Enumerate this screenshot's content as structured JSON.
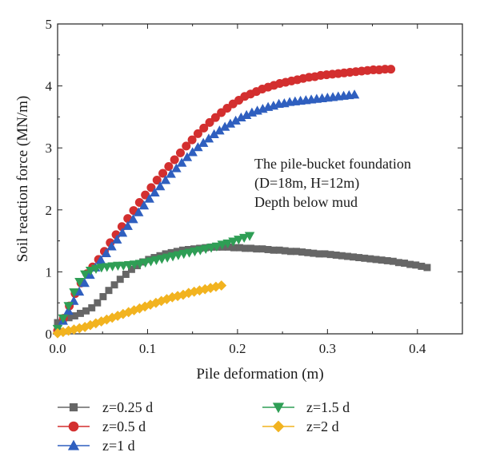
{
  "chart_data": {
    "type": "scatter",
    "title": "",
    "xlabel": "Pile deformation (m)",
    "ylabel": "Soil reaction force (MN/m)",
    "xlim": [
      0,
      0.45
    ],
    "ylim": [
      0,
      5
    ],
    "x_ticks": [
      "0.0",
      "0.1",
      "0.2",
      "0.3",
      "0.4"
    ],
    "y_ticks": [
      "0",
      "1",
      "2",
      "3",
      "4",
      "5"
    ],
    "grid": false,
    "legend_position": "bottom",
    "annotation": [
      "The pile-bucket foundation",
      "(D=18m, H=12m)",
      "Depth below mud"
    ],
    "series": [
      {
        "name": "z=0.25 d",
        "marker": "square",
        "color": "#666666",
        "x": [
          0.0,
          0.0063,
          0.0126,
          0.019,
          0.0253,
          0.0316,
          0.038,
          0.0443,
          0.0506,
          0.0569,
          0.0632,
          0.0696,
          0.0759,
          0.0822,
          0.0885,
          0.0948,
          0.1012,
          0.1075,
          0.1138,
          0.1201,
          0.1264,
          0.1328,
          0.1391,
          0.1454,
          0.1517,
          0.158,
          0.1644,
          0.1707,
          0.177,
          0.1833,
          0.1896,
          0.196,
          0.2023,
          0.2086,
          0.2149,
          0.2212,
          0.2276,
          0.2339,
          0.2402,
          0.2465,
          0.2528,
          0.2592,
          0.2655,
          0.2718,
          0.2781,
          0.2844,
          0.2908,
          0.2971,
          0.3034,
          0.3097,
          0.316,
          0.3224,
          0.3287,
          0.335,
          0.3413,
          0.3476,
          0.354,
          0.3603,
          0.3666,
          0.3729,
          0.3792,
          0.3856,
          0.3919,
          0.3982,
          0.4045,
          0.4108
        ],
        "y": [
          0.18,
          0.22,
          0.26,
          0.29,
          0.33,
          0.37,
          0.42,
          0.5,
          0.6,
          0.7,
          0.79,
          0.88,
          0.96,
          1.04,
          1.1,
          1.16,
          1.2,
          1.23,
          1.26,
          1.29,
          1.31,
          1.33,
          1.35,
          1.36,
          1.37,
          1.38,
          1.39,
          1.4,
          1.4,
          1.4,
          1.4,
          1.39,
          1.39,
          1.38,
          1.38,
          1.37,
          1.37,
          1.36,
          1.35,
          1.35,
          1.34,
          1.33,
          1.33,
          1.32,
          1.31,
          1.3,
          1.29,
          1.29,
          1.28,
          1.27,
          1.26,
          1.25,
          1.24,
          1.23,
          1.22,
          1.21,
          1.2,
          1.19,
          1.18,
          1.17,
          1.15,
          1.14,
          1.12,
          1.11,
          1.09,
          1.07
        ]
      },
      {
        "name": "z=0.5 d",
        "marker": "circle",
        "color": "#d32f2f",
        "x": [
          0.0,
          0.0065,
          0.013,
          0.0195,
          0.026,
          0.0325,
          0.039,
          0.0455,
          0.052,
          0.0585,
          0.065,
          0.0715,
          0.078,
          0.0845,
          0.091,
          0.0975,
          0.104,
          0.1105,
          0.117,
          0.1235,
          0.13,
          0.1365,
          0.143,
          0.1495,
          0.156,
          0.1625,
          0.169,
          0.1755,
          0.182,
          0.1885,
          0.195,
          0.2015,
          0.208,
          0.2145,
          0.221,
          0.2275,
          0.234,
          0.2405,
          0.247,
          0.2535,
          0.26,
          0.2665,
          0.273,
          0.2795,
          0.286,
          0.2925,
          0.299,
          0.3055,
          0.312,
          0.3185,
          0.325,
          0.3315,
          0.338,
          0.3445,
          0.351,
          0.3575,
          0.364,
          0.3705
        ],
        "y": [
          0.05,
          0.25,
          0.45,
          0.65,
          0.82,
          0.97,
          1.08,
          1.2,
          1.33,
          1.47,
          1.6,
          1.73,
          1.86,
          1.99,
          2.12,
          2.24,
          2.36,
          2.48,
          2.59,
          2.7,
          2.81,
          2.92,
          3.03,
          3.13,
          3.23,
          3.32,
          3.41,
          3.49,
          3.57,
          3.64,
          3.71,
          3.77,
          3.83,
          3.87,
          3.91,
          3.95,
          3.98,
          4.01,
          4.04,
          4.06,
          4.08,
          4.1,
          4.12,
          4.14,
          4.15,
          4.17,
          4.18,
          4.19,
          4.2,
          4.21,
          4.22,
          4.23,
          4.24,
          4.25,
          4.26,
          4.26,
          4.27,
          4.27
        ]
      },
      {
        "name": "z=1 d",
        "marker": "triangle-up",
        "color": "#2f5fbf",
        "x": [
          0.0,
          0.006,
          0.012,
          0.018,
          0.024,
          0.03,
          0.036,
          0.042,
          0.048,
          0.054,
          0.06,
          0.066,
          0.072,
          0.078,
          0.084,
          0.09,
          0.096,
          0.102,
          0.108,
          0.114,
          0.12,
          0.126,
          0.132,
          0.138,
          0.144,
          0.15,
          0.156,
          0.162,
          0.168,
          0.174,
          0.18,
          0.186,
          0.192,
          0.198,
          0.204,
          0.21,
          0.216,
          0.222,
          0.228,
          0.234,
          0.24,
          0.246,
          0.252,
          0.258,
          0.264,
          0.27,
          0.276,
          0.282,
          0.288,
          0.294,
          0.3,
          0.306,
          0.312,
          0.318,
          0.324,
          0.33
        ],
        "y": [
          0.05,
          0.21,
          0.37,
          0.53,
          0.68,
          0.82,
          0.95,
          1.07,
          1.19,
          1.3,
          1.41,
          1.52,
          1.63,
          1.74,
          1.85,
          1.96,
          2.07,
          2.18,
          2.28,
          2.38,
          2.48,
          2.58,
          2.67,
          2.76,
          2.85,
          2.93,
          3.01,
          3.08,
          3.15,
          3.22,
          3.28,
          3.34,
          3.39,
          3.44,
          3.49,
          3.53,
          3.57,
          3.6,
          3.63,
          3.66,
          3.68,
          3.71,
          3.72,
          3.74,
          3.75,
          3.76,
          3.77,
          3.78,
          3.79,
          3.8,
          3.81,
          3.82,
          3.83,
          3.84,
          3.85,
          3.86
        ]
      },
      {
        "name": "z=1.5 d",
        "marker": "triangle-down",
        "color": "#2e9e55",
        "x": [
          0.0,
          0.0061,
          0.0122,
          0.0183,
          0.0244,
          0.0305,
          0.0366,
          0.0427,
          0.0488,
          0.0549,
          0.061,
          0.0671,
          0.0732,
          0.0793,
          0.0854,
          0.0915,
          0.0976,
          0.1037,
          0.1098,
          0.1159,
          0.122,
          0.1281,
          0.1342,
          0.1403,
          0.1464,
          0.1525,
          0.1586,
          0.1647,
          0.1708,
          0.1769,
          0.183,
          0.1891,
          0.1952,
          0.2013,
          0.2074,
          0.2135
        ],
        "y": [
          0.08,
          0.25,
          0.45,
          0.67,
          0.84,
          0.96,
          1.02,
          1.05,
          1.07,
          1.08,
          1.09,
          1.1,
          1.1,
          1.11,
          1.12,
          1.13,
          1.15,
          1.17,
          1.19,
          1.21,
          1.23,
          1.25,
          1.27,
          1.29,
          1.31,
          1.33,
          1.35,
          1.37,
          1.39,
          1.41,
          1.44,
          1.46,
          1.49,
          1.52,
          1.55,
          1.58
        ]
      },
      {
        "name": "z=2 d",
        "marker": "diamond",
        "color": "#f2b31f",
        "x": [
          0.0,
          0.0061,
          0.0121,
          0.0182,
          0.0243,
          0.0304,
          0.0364,
          0.0425,
          0.0486,
          0.0546,
          0.0607,
          0.0668,
          0.0728,
          0.0789,
          0.085,
          0.0911,
          0.0971,
          0.1032,
          0.1093,
          0.1153,
          0.1214,
          0.1275,
          0.1335,
          0.1396,
          0.1457,
          0.1518,
          0.1578,
          0.1639,
          0.17,
          0.176,
          0.1821
        ],
        "y": [
          0.01,
          0.03,
          0.05,
          0.07,
          0.09,
          0.11,
          0.14,
          0.17,
          0.2,
          0.23,
          0.26,
          0.29,
          0.32,
          0.35,
          0.38,
          0.41,
          0.44,
          0.47,
          0.5,
          0.53,
          0.56,
          0.59,
          0.61,
          0.63,
          0.66,
          0.68,
          0.7,
          0.72,
          0.74,
          0.76,
          0.78
        ]
      }
    ]
  }
}
